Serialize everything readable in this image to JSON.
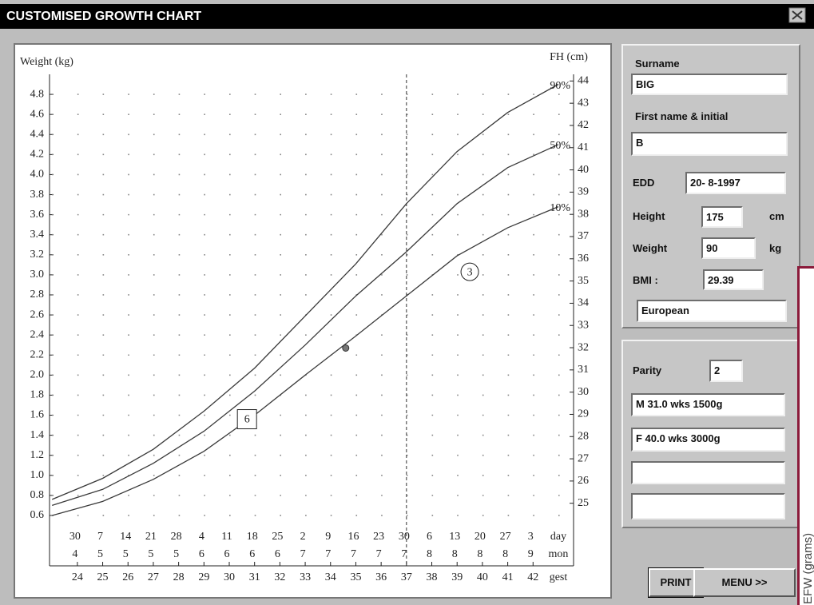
{
  "window": {
    "title": "CUSTOMISED GROWTH CHART"
  },
  "chart_data": {
    "type": "line",
    "ylabel": "Weight (kg)",
    "y2label": "FH (cm)",
    "xlabel": "gest",
    "xlim": [
      22.9,
      43.6
    ],
    "xticks": [
      24,
      25,
      26,
      27,
      28,
      29,
      30,
      31,
      32,
      33,
      34,
      35,
      36,
      37,
      38,
      39,
      40,
      41,
      42
    ],
    "ylim": [
      0.5,
      5.0
    ],
    "yticks": [
      0.6,
      0.8,
      {
        "value": 1,
        "label": "1.0"
      },
      1.2,
      1.4,
      1.6,
      1.8,
      {
        "value": 2,
        "label": "2.0"
      },
      2.2,
      2.4,
      2.6,
      2.8,
      {
        "value": 3,
        "label": "3.0"
      },
      3.2,
      3.4,
      3.6,
      3.8,
      {
        "value": 4,
        "label": "4.0"
      },
      4.2,
      4.4,
      4.6,
      4.8
    ],
    "y2lim": [
      24,
      44.3
    ],
    "y2ticks": [
      25,
      26,
      27,
      28,
      29,
      30,
      31,
      32,
      33,
      34,
      35,
      36,
      37,
      38,
      39,
      40,
      41,
      42,
      43,
      44
    ],
    "grid": true,
    "x": [
      23,
      25,
      27,
      29,
      31,
      33,
      35,
      37,
      39,
      41,
      43
    ],
    "series": [
      {
        "name": "90%",
        "color": "#3a3a3a",
        "values": [
          0.76,
          0.97,
          1.26,
          1.64,
          2.07,
          2.59,
          3.11,
          3.71,
          4.23,
          4.62,
          4.9
        ]
      },
      {
        "name": "50%",
        "color": "#3a3a3a",
        "values": [
          0.7,
          0.86,
          1.12,
          1.44,
          1.84,
          2.3,
          2.79,
          3.23,
          3.71,
          4.07,
          4.3
        ]
      },
      {
        "name": "10%",
        "color": "#3a3a3a",
        "values": [
          0.6,
          0.74,
          0.96,
          1.24,
          1.6,
          2.0,
          2.39,
          2.79,
          3.19,
          3.47,
          3.68
        ]
      }
    ],
    "term_week": 37,
    "dates": {
      "day_label": "day",
      "mon_label": "mon",
      "day": [
        30,
        7,
        14,
        21,
        28,
        4,
        11,
        18,
        25,
        2,
        9,
        16,
        23,
        30,
        6,
        13,
        20,
        27,
        3
      ],
      "mon": [
        4,
        5,
        5,
        5,
        5,
        6,
        6,
        6,
        6,
        7,
        7,
        7,
        7,
        7,
        8,
        8,
        8,
        8,
        9
      ]
    },
    "points": [
      {
        "x": 34.6,
        "y": 2.27
      }
    ],
    "annotations": [
      {
        "text": "6",
        "x": 30.7,
        "y": 1.56,
        "shape": "box"
      },
      {
        "text": "3",
        "x": 39.5,
        "y": 3.03,
        "shape": "circle"
      }
    ]
  },
  "form": {
    "patient": {
      "surname_label": "Surname",
      "surname": "BIG",
      "first_name_label": "First name & initial",
      "first_name": "B",
      "edd_label": "EDD",
      "edd": "20- 8-1997",
      "height_label": "Height",
      "height": 175,
      "height_unit": "cm",
      "weight_label": "Weight",
      "weight": 90,
      "weight_unit": "kg",
      "bmi_label": "BMI :",
      "bmi": 29.39,
      "ethnicity": "European"
    },
    "history": {
      "parity_label": "Parity",
      "parity": 2,
      "pregnancies": [
        "M 31.0 wks 1500g",
        "F 40.0 wks 3000g"
      ]
    },
    "buttons": [
      "PRINT",
      "MENU >>"
    ]
  },
  "overlay": {
    "label": "EFW (grams)"
  }
}
